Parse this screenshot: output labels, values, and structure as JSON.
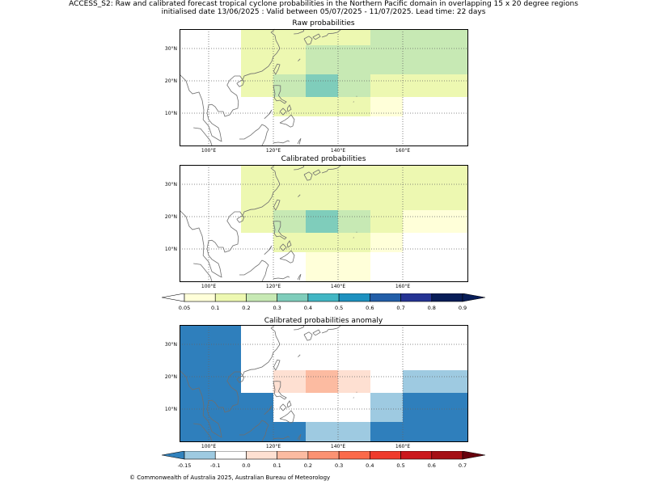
{
  "header": {
    "line1": "ACCESS_S2: Raw and calibrated forecast tropical cyclone probabilities in the Northern Pacific domain in overlapping 15 x 20 degree regions",
    "line2": "initialised date 13/06/2025 :  Valid between 05/07/2025 - 11/07/2025. Lead time: 22 days"
  },
  "axes": {
    "lon_labels": [
      "100°E",
      "120°E",
      "140°E",
      "160°E"
    ],
    "lat_labels": [
      "30°N",
      "20°N",
      "10°N"
    ],
    "lon_values": [
      100,
      120,
      140,
      160
    ],
    "lat_values": [
      30,
      20,
      10
    ],
    "lon_range": [
      91,
      180
    ],
    "lat_range": [
      0,
      36
    ]
  },
  "panels": {
    "raw": {
      "title": "Raw probabilities",
      "cells": [
        {
          "lon": [
            110,
            130
          ],
          "lat": [
            31,
            36
          ],
          "color": "#edf8b1"
        },
        {
          "lon": [
            130,
            150
          ],
          "lat": [
            31,
            36
          ],
          "color": "#edf8b1"
        },
        {
          "lon": [
            150,
            180
          ],
          "lat": [
            31,
            36
          ],
          "color": "#c7e9b4"
        },
        {
          "lon": [
            110,
            130
          ],
          "lat": [
            22,
            31
          ],
          "color": "#edf8b1"
        },
        {
          "lon": [
            130,
            180
          ],
          "lat": [
            22,
            31
          ],
          "color": "#c7e9b4"
        },
        {
          "lon": [
            110,
            120
          ],
          "lat": [
            15,
            22
          ],
          "color": "#edf8b1"
        },
        {
          "lon": [
            120,
            130
          ],
          "lat": [
            15,
            22
          ],
          "color": "#c7e9b4"
        },
        {
          "lon": [
            130,
            140
          ],
          "lat": [
            15,
            22
          ],
          "color": "#7fcdbb"
        },
        {
          "lon": [
            140,
            150
          ],
          "lat": [
            15,
            22
          ],
          "color": "#c7e9b4"
        },
        {
          "lon": [
            150,
            180
          ],
          "lat": [
            15,
            22
          ],
          "color": "#edf8b1"
        },
        {
          "lon": [
            120,
            150
          ],
          "lat": [
            9,
            15
          ],
          "color": "#edf8b1"
        },
        {
          "lon": [
            150,
            160
          ],
          "lat": [
            9,
            15
          ],
          "color": "#ffffd9"
        }
      ]
    },
    "calibrated": {
      "title": "Calibrated probabilities",
      "cells": [
        {
          "lon": [
            110,
            180
          ],
          "lat": [
            22,
            36
          ],
          "color": "#edf8b1"
        },
        {
          "lon": [
            110,
            120
          ],
          "lat": [
            15,
            22
          ],
          "color": "#edf8b1"
        },
        {
          "lon": [
            120,
            130
          ],
          "lat": [
            15,
            22
          ],
          "color": "#c7e9b4"
        },
        {
          "lon": [
            130,
            140
          ],
          "lat": [
            15,
            22
          ],
          "color": "#7fcdbb"
        },
        {
          "lon": [
            140,
            150
          ],
          "lat": [
            15,
            22
          ],
          "color": "#c7e9b4"
        },
        {
          "lon": [
            150,
            160
          ],
          "lat": [
            15,
            22
          ],
          "color": "#edf8b1"
        },
        {
          "lon": [
            160,
            180
          ],
          "lat": [
            15,
            22
          ],
          "color": "#ffffd9"
        },
        {
          "lon": [
            120,
            150
          ],
          "lat": [
            9,
            15
          ],
          "color": "#edf8b1"
        },
        {
          "lon": [
            150,
            160
          ],
          "lat": [
            9,
            15
          ],
          "color": "#ffffd9"
        },
        {
          "lon": [
            130,
            150
          ],
          "lat": [
            0,
            9
          ],
          "color": "#ffffd9"
        }
      ]
    },
    "anomaly": {
      "title": "Calibrated probabilities anomaly",
      "cells": [
        {
          "lon": [
            91,
            110
          ],
          "lat": [
            15,
            36
          ],
          "color": "#2f7fbc"
        },
        {
          "lon": [
            91,
            120
          ],
          "lat": [
            0,
            15
          ],
          "color": "#2f7fbc"
        },
        {
          "lon": [
            120,
            130
          ],
          "lat": [
            0,
            6
          ],
          "color": "#2f7fbc"
        },
        {
          "lon": [
            130,
            150
          ],
          "lat": [
            0,
            6
          ],
          "color": "#9ecae1"
        },
        {
          "lon": [
            150,
            160
          ],
          "lat": [
            0,
            6
          ],
          "color": "#2f7fbc"
        },
        {
          "lon": [
            150,
            160
          ],
          "lat": [
            6,
            15
          ],
          "color": "#9ecae1"
        },
        {
          "lon": [
            160,
            180
          ],
          "lat": [
            0,
            15
          ],
          "color": "#2f7fbc"
        },
        {
          "lon": [
            160,
            180
          ],
          "lat": [
            15,
            22
          ],
          "color": "#9ecae1"
        },
        {
          "lon": [
            120,
            130
          ],
          "lat": [
            15,
            22
          ],
          "color": "#fee0d2"
        },
        {
          "lon": [
            130,
            140
          ],
          "lat": [
            15,
            22
          ],
          "color": "#fcbba1"
        },
        {
          "lon": [
            140,
            150
          ],
          "lat": [
            15,
            22
          ],
          "color": "#fee0d2"
        }
      ]
    }
  },
  "colorbars": {
    "prob": {
      "ticks": [
        "0.05",
        "0.1",
        "0.2",
        "0.3",
        "0.4",
        "0.5",
        "0.6",
        "0.7",
        "0.8",
        "0.9"
      ],
      "colors": [
        "#ffffd9",
        "#edf8b1",
        "#c7e9b4",
        "#7fcdbb",
        "#41b6c4",
        "#1d91c0",
        "#225ea8",
        "#253494",
        "#081d58"
      ],
      "under": "#ffffff",
      "over": "#081d58"
    },
    "anom": {
      "ticks": [
        "-0.15",
        "-0.1",
        "0.0",
        "0.1",
        "0.2",
        "0.3",
        "0.4",
        "0.5",
        "0.6",
        "0.7"
      ],
      "colors": [
        "#9ecae1",
        "#ffffff",
        "#fee0d2",
        "#fcbba1",
        "#fc9272",
        "#fb6a4a",
        "#ef3b2c",
        "#cb181d",
        "#a50f15"
      ],
      "under": "#3182bd",
      "over": "#67000d"
    }
  },
  "footer": "© Commonwealth of Australia 2025, Australian Bureau of Meteorology"
}
